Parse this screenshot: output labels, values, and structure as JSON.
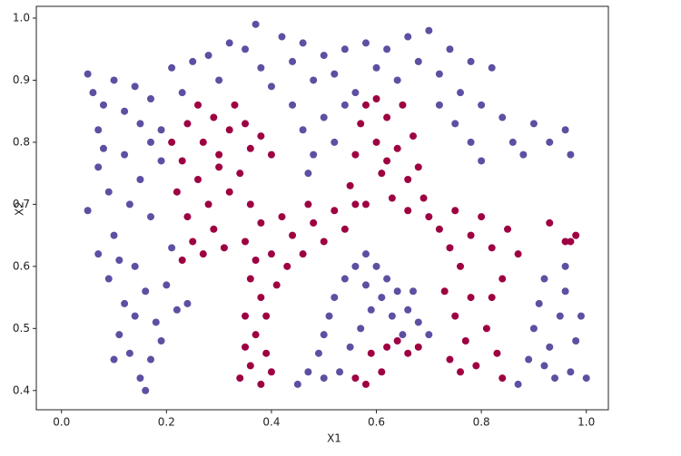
{
  "chart_data": {
    "type": "scatter",
    "x_label": "X1",
    "y_label": "X2",
    "xlim": [
      -0.048,
      1.042
    ],
    "ylim": [
      0.369,
      1.019
    ],
    "xticks": [
      {
        "value": 0,
        "label": "0.0"
      },
      0.2,
      0.4,
      0.6,
      0.8,
      {
        "value": 1,
        "label": "1.0"
      }
    ],
    "yticks": [
      0.4,
      0.5,
      0.6,
      0.7,
      0.8,
      0.9,
      {
        "value": 1,
        "label": "1.0"
      }
    ],
    "series": [
      {
        "color": "#5e4fa2",
        "x": [
          0.05,
          0.06,
          0.08,
          0.07,
          0.1,
          0.12,
          0.14,
          0.15,
          0.17,
          0.19,
          0.21,
          0.23,
          0.25,
          0.28,
          0.3,
          0.32,
          0.35,
          0.37,
          0.38,
          0.4,
          0.42,
          0.44,
          0.46,
          0.48,
          0.5,
          0.52,
          0.54,
          0.56,
          0.58,
          0.6,
          0.62,
          0.64,
          0.66,
          0.68,
          0.7,
          0.72,
          0.74,
          0.76,
          0.78,
          0.8,
          0.82,
          0.75,
          0.78,
          0.8,
          0.84,
          0.86,
          0.88,
          0.9,
          0.93,
          0.96,
          0.97,
          0.72,
          0.44,
          0.46,
          0.48,
          0.5,
          0.52,
          0.47,
          0.54,
          0.05,
          0.07,
          0.09,
          0.1,
          0.12,
          0.13,
          0.15,
          0.17,
          0.19,
          0.21,
          0.07,
          0.09,
          0.12,
          0.14,
          0.16,
          0.18,
          0.2,
          0.22,
          0.11,
          0.13,
          0.15,
          0.17,
          0.19,
          0.1,
          0.16,
          0.14,
          0.24,
          0.11,
          0.08,
          0.17,
          0.45,
          0.47,
          0.49,
          0.5,
          0.51,
          0.52,
          0.54,
          0.56,
          0.58,
          0.6,
          0.62,
          0.64,
          0.66,
          0.68,
          0.7,
          0.53,
          0.55,
          0.57,
          0.59,
          0.61,
          0.63,
          0.65,
          0.5,
          0.58,
          0.67,
          0.87,
          0.89,
          0.9,
          0.91,
          0.92,
          0.93,
          0.95,
          0.96,
          0.97,
          0.98,
          0.99,
          0.94,
          0.92,
          1.0,
          0.96
        ],
        "values": [
          0.91,
          0.88,
          0.86,
          0.82,
          0.9,
          0.85,
          0.89,
          0.83,
          0.87,
          0.82,
          0.92,
          0.88,
          0.93,
          0.94,
          0.9,
          0.96,
          0.95,
          0.99,
          0.92,
          0.89,
          0.97,
          0.93,
          0.96,
          0.9,
          0.94,
          0.91,
          0.95,
          0.88,
          0.96,
          0.92,
          0.95,
          0.9,
          0.97,
          0.93,
          0.98,
          0.91,
          0.95,
          0.88,
          0.93,
          0.86,
          0.92,
          0.83,
          0.8,
          0.77,
          0.84,
          0.8,
          0.78,
          0.83,
          0.8,
          0.82,
          0.78,
          0.86,
          0.86,
          0.82,
          0.78,
          0.84,
          0.8,
          0.75,
          0.86,
          0.69,
          0.76,
          0.72,
          0.65,
          0.78,
          0.7,
          0.74,
          0.68,
          0.77,
          0.63,
          0.62,
          0.58,
          0.54,
          0.6,
          0.56,
          0.51,
          0.57,
          0.53,
          0.49,
          0.46,
          0.42,
          0.45,
          0.48,
          0.45,
          0.4,
          0.52,
          0.54,
          0.61,
          0.79,
          0.8,
          0.41,
          0.43,
          0.46,
          0.49,
          0.52,
          0.55,
          0.58,
          0.6,
          0.62,
          0.6,
          0.58,
          0.56,
          0.53,
          0.51,
          0.49,
          0.43,
          0.47,
          0.5,
          0.53,
          0.55,
          0.52,
          0.49,
          0.42,
          0.57,
          0.56,
          0.41,
          0.45,
          0.5,
          0.54,
          0.58,
          0.47,
          0.52,
          0.56,
          0.43,
          0.48,
          0.52,
          0.42,
          0.44,
          0.42,
          0.6
        ]
      },
      {
        "color": "#9e0142",
        "x": [
          0.21,
          0.23,
          0.24,
          0.26,
          0.27,
          0.29,
          0.3,
          0.32,
          0.33,
          0.35,
          0.36,
          0.38,
          0.4,
          0.22,
          0.24,
          0.26,
          0.28,
          0.3,
          0.32,
          0.34,
          0.25,
          0.27,
          0.29,
          0.31,
          0.23,
          0.36,
          0.38,
          0.35,
          0.37,
          0.36,
          0.38,
          0.35,
          0.37,
          0.39,
          0.36,
          0.34,
          0.38,
          0.4,
          0.35,
          0.39,
          0.41,
          0.4,
          0.42,
          0.44,
          0.46,
          0.48,
          0.5,
          0.52,
          0.54,
          0.56,
          0.43,
          0.47,
          0.55,
          0.56,
          0.57,
          0.58,
          0.6,
          0.6,
          0.61,
          0.62,
          0.63,
          0.64,
          0.65,
          0.66,
          0.67,
          0.68,
          0.69,
          0.58,
          0.62,
          0.66,
          0.7,
          0.72,
          0.74,
          0.75,
          0.76,
          0.78,
          0.8,
          0.82,
          0.84,
          0.85,
          0.73,
          0.75,
          0.77,
          0.79,
          0.81,
          0.83,
          0.84,
          0.78,
          0.74,
          0.76,
          0.82,
          0.59,
          0.61,
          0.62,
          0.64,
          0.66,
          0.68,
          0.56,
          0.58,
          0.93,
          0.97,
          0.98,
          0.96,
          0.87
        ],
        "values": [
          0.8,
          0.77,
          0.83,
          0.86,
          0.8,
          0.84,
          0.78,
          0.82,
          0.86,
          0.83,
          0.79,
          0.81,
          0.78,
          0.72,
          0.68,
          0.74,
          0.7,
          0.76,
          0.72,
          0.75,
          0.64,
          0.62,
          0.66,
          0.63,
          0.61,
          0.7,
          0.67,
          0.64,
          0.61,
          0.58,
          0.55,
          0.52,
          0.49,
          0.46,
          0.44,
          0.42,
          0.41,
          0.43,
          0.47,
          0.52,
          0.57,
          0.62,
          0.68,
          0.65,
          0.62,
          0.67,
          0.64,
          0.69,
          0.66,
          0.7,
          0.6,
          0.7,
          0.73,
          0.78,
          0.83,
          0.86,
          0.87,
          0.8,
          0.75,
          0.84,
          0.71,
          0.79,
          0.86,
          0.74,
          0.81,
          0.76,
          0.71,
          0.7,
          0.77,
          0.69,
          0.68,
          0.66,
          0.63,
          0.69,
          0.6,
          0.65,
          0.68,
          0.63,
          0.58,
          0.66,
          0.56,
          0.52,
          0.48,
          0.44,
          0.5,
          0.46,
          0.42,
          0.55,
          0.45,
          0.43,
          0.55,
          0.46,
          0.43,
          0.47,
          0.48,
          0.46,
          0.47,
          0.42,
          0.41,
          0.67,
          0.64,
          0.65,
          0.64,
          0.62
        ]
      }
    ]
  }
}
